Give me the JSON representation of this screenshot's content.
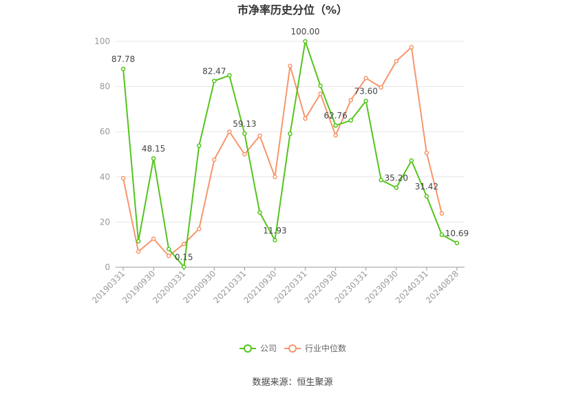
{
  "chart_data": {
    "type": "line",
    "title": "市净率历史分位（%）",
    "source": "数据来源：恒生聚源",
    "ylim": [
      0,
      100
    ],
    "y_ticks": [
      0,
      20,
      40,
      60,
      80,
      100
    ],
    "x_tick_labels": [
      "20190331",
      "20190930",
      "20200331",
      "20200930",
      "20210331",
      "20210930",
      "20220331",
      "20220930",
      "20230331",
      "20230930",
      "20240331",
      "20240828"
    ],
    "x_tick_indices": [
      0,
      2,
      4,
      6,
      8,
      10,
      12,
      14,
      16,
      18,
      20,
      22
    ],
    "n_points": 23,
    "grid": true,
    "legend_position": "bottom",
    "series": [
      {
        "name": "公司",
        "color": "#52c41a",
        "values": [
          87.78,
          11.5,
          48.15,
          8.0,
          0.15,
          53.8,
          82.47,
          84.9,
          59.13,
          24.2,
          11.93,
          59.1,
          100.0,
          80.3,
          62.76,
          65.0,
          73.6,
          38.6,
          35.2,
          47.2,
          31.42,
          14.4,
          10.69
        ],
        "data_labels": [
          {
            "index": 0,
            "text": "87.78"
          },
          {
            "index": 2,
            "text": "48.15"
          },
          {
            "index": 4,
            "text": "0.15"
          },
          {
            "index": 6,
            "text": "82.47"
          },
          {
            "index": 8,
            "text": "59.13"
          },
          {
            "index": 10,
            "text": "11.93"
          },
          {
            "index": 12,
            "text": "100.00"
          },
          {
            "index": 14,
            "text": "62.76"
          },
          {
            "index": 16,
            "text": "73.60"
          },
          {
            "index": 18,
            "text": "35.20"
          },
          {
            "index": 20,
            "text": "31.42"
          },
          {
            "index": 22,
            "text": "10.69"
          }
        ]
      },
      {
        "name": "行业中位数",
        "color": "#f7956a",
        "values": [
          39.4,
          6.9,
          12.6,
          5.0,
          10.3,
          17.0,
          47.6,
          60.0,
          50.0,
          58.2,
          40.0,
          89.1,
          65.8,
          76.8,
          58.4,
          73.9,
          83.7,
          79.6,
          91.2,
          97.4,
          50.6,
          23.8,
          null
        ]
      }
    ]
  }
}
